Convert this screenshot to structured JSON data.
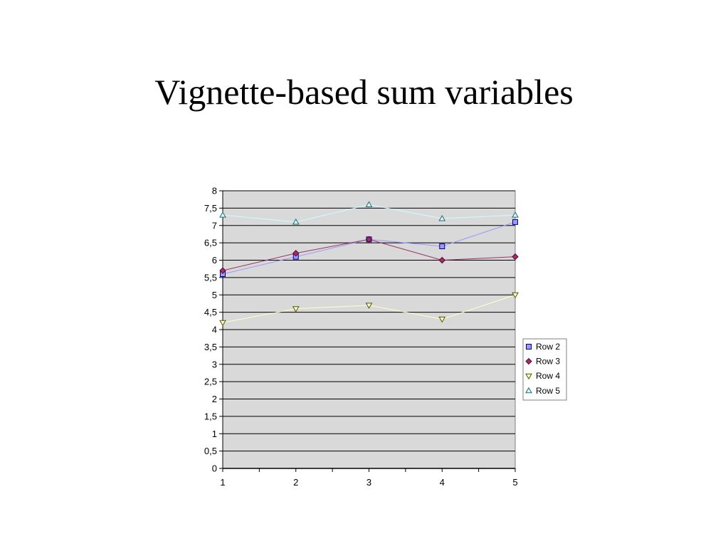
{
  "slide": {
    "title": "Vignette-based sum variables"
  },
  "chart_data": {
    "type": "line",
    "title": "",
    "xlabel": "",
    "ylabel": "",
    "x": [
      1,
      2,
      3,
      4,
      5
    ],
    "x_tick_labels": [
      "1",
      "2",
      "3",
      "4",
      "5"
    ],
    "ylim": [
      0,
      8
    ],
    "y_tick_labels": [
      "0",
      "0,5",
      "1",
      "1,5",
      "2",
      "2,5",
      "3",
      "3,5",
      "4",
      "4,5",
      "5",
      "5,5",
      "6",
      "6,5",
      "7",
      "7,5",
      "8"
    ],
    "grid": true,
    "legend_position": "right",
    "plot_background": "#d9d9d9",
    "series": [
      {
        "name": "Row 2",
        "values": [
          5.6,
          6.1,
          6.6,
          6.4,
          7.1
        ],
        "line_color": "#9999ff",
        "marker": "square",
        "marker_fill": "#9999ff"
      },
      {
        "name": "Row 3",
        "values": [
          5.7,
          6.2,
          6.6,
          6.0,
          6.1
        ],
        "line_color": "#993366",
        "marker": "diamond",
        "marker_fill": "#993366"
      },
      {
        "name": "Row 4",
        "values": [
          4.2,
          4.6,
          4.7,
          4.3,
          5.0
        ],
        "line_color": "#ffffcc",
        "marker": "triangle-down",
        "marker_fill": "#ffffcc"
      },
      {
        "name": "Row 5",
        "values": [
          7.3,
          7.1,
          7.6,
          7.2,
          7.3
        ],
        "line_color": "#ccffff",
        "marker": "triangle-up",
        "marker_fill": "#ccffff"
      }
    ]
  }
}
